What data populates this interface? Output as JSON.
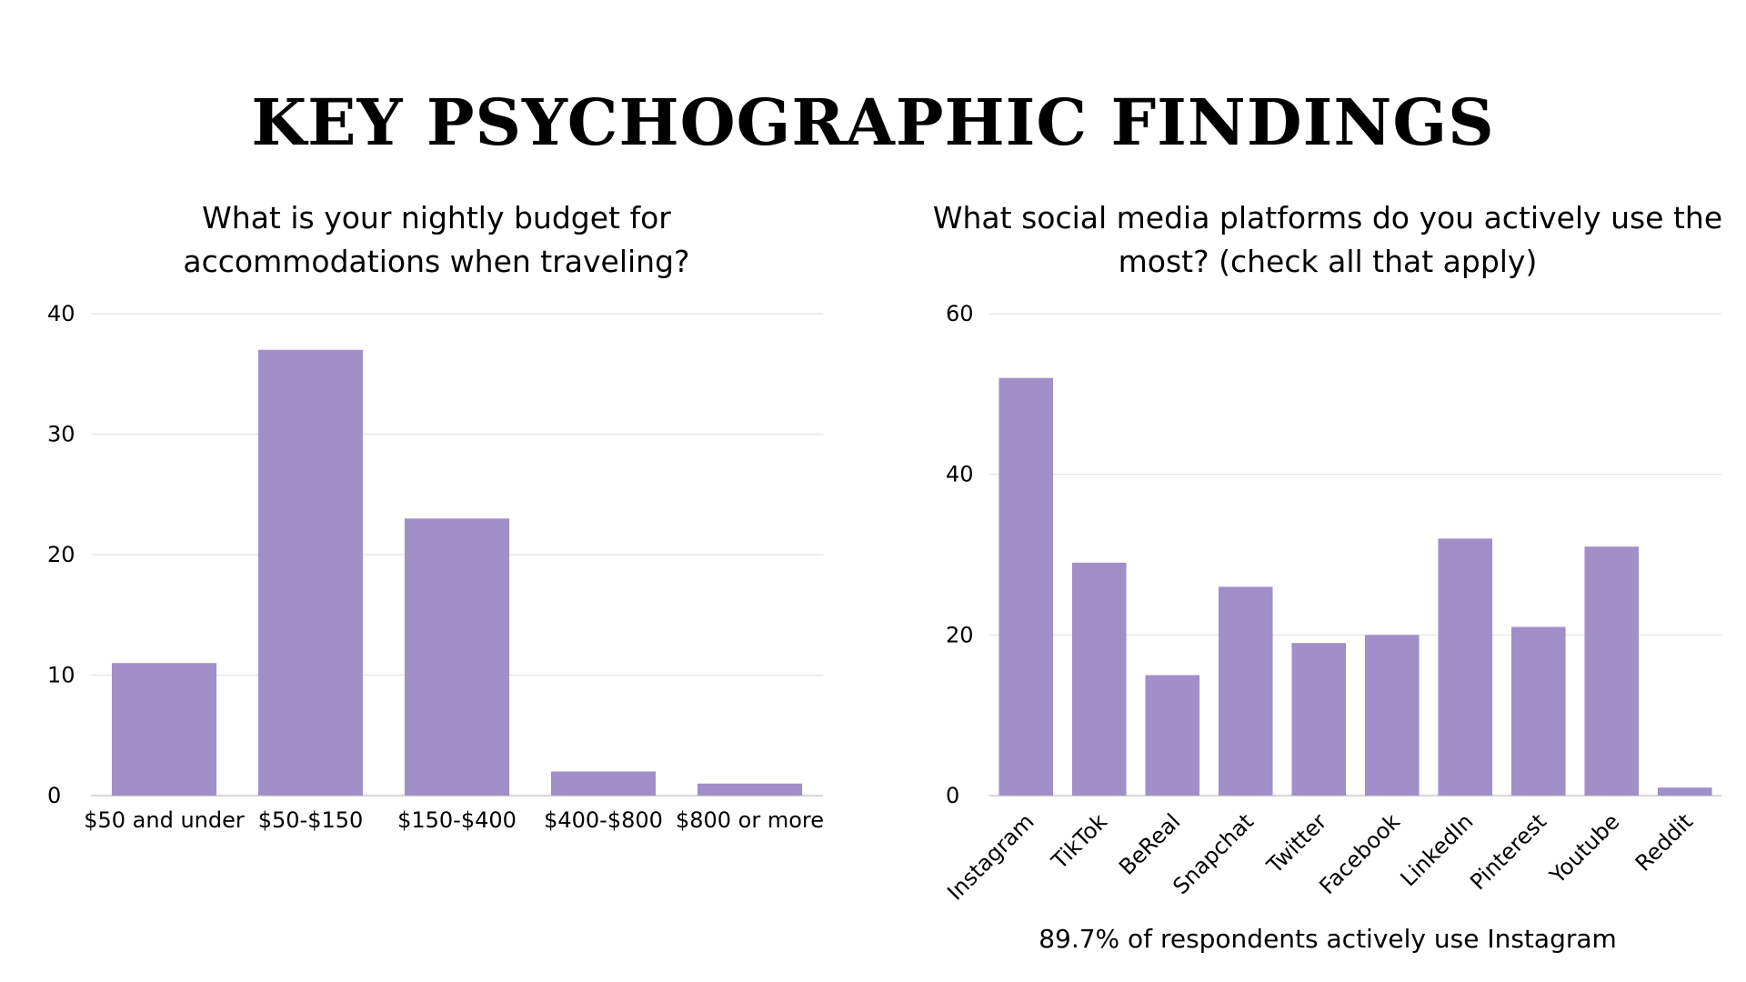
{
  "title": "KEY PSYCHOGRAPHIC FINDINGS",
  "footnote": "89.7% of respondents actively use Instagram",
  "colors": {
    "bar": "#a08fc9",
    "grid": "#e3e3e3",
    "axis": "#bdbdbd"
  },
  "chart_data": [
    {
      "type": "bar",
      "title": "What is your nightly budget for accommodations when traveling?",
      "categories": [
        "$50 and under",
        "$50-$150",
        "$150-$400",
        "$400-$800",
        "$800 or more"
      ],
      "values": [
        11,
        37,
        23,
        2,
        1
      ],
      "ylim": [
        0,
        40
      ],
      "yticks": [
        0,
        10,
        20,
        30,
        40
      ],
      "xlabel": "",
      "ylabel": "",
      "grid": true
    },
    {
      "type": "bar",
      "title": "What social media platforms do you actively use the most? (check all that apply)",
      "categories": [
        "Instagram",
        "TikTok",
        "BeReal",
        "Snapchat",
        "Twitter",
        "Facebook",
        "LinkedIn",
        "Pinterest",
        "Youtube",
        "Reddit"
      ],
      "values": [
        52,
        29,
        15,
        26,
        19,
        20,
        32,
        21,
        31,
        1
      ],
      "ylim": [
        0,
        60
      ],
      "yticks": [
        0,
        20,
        40,
        60
      ],
      "xlabel": "",
      "ylabel": "",
      "grid": true
    }
  ]
}
